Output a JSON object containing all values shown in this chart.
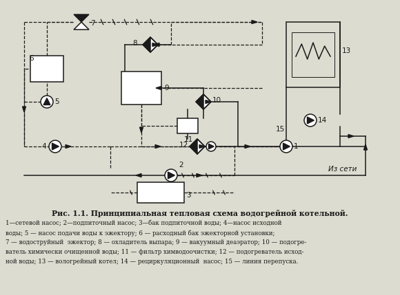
{
  "title": "Рис. 1.1. Принципиальная тепловая схема водогрейной котельной.",
  "caption_lines": [
    "1—сетевой насос; 2—подпиточный насос; 3—бак подпиточной воды; 4—насос исходной",
    "воды; 5 — насос подачи воды к эжектору; 6 — расходный бак эжекторной установки;",
    "7 — водоструйный  эжектор; 8 — охладитель выпара; 9 — вакуумный деаэратор; 10 — подогре-",
    "ватель химически очищенной воды; 11 — фильтр химводоочистки; 12 — подогреватель исход-",
    "ной воды; 13 — вологрейный котел; 14 — рециркуляционный  насос; 15 — линия перепуска."
  ],
  "bg_color": "#dcdcd0",
  "line_color": "#1a1a1a"
}
